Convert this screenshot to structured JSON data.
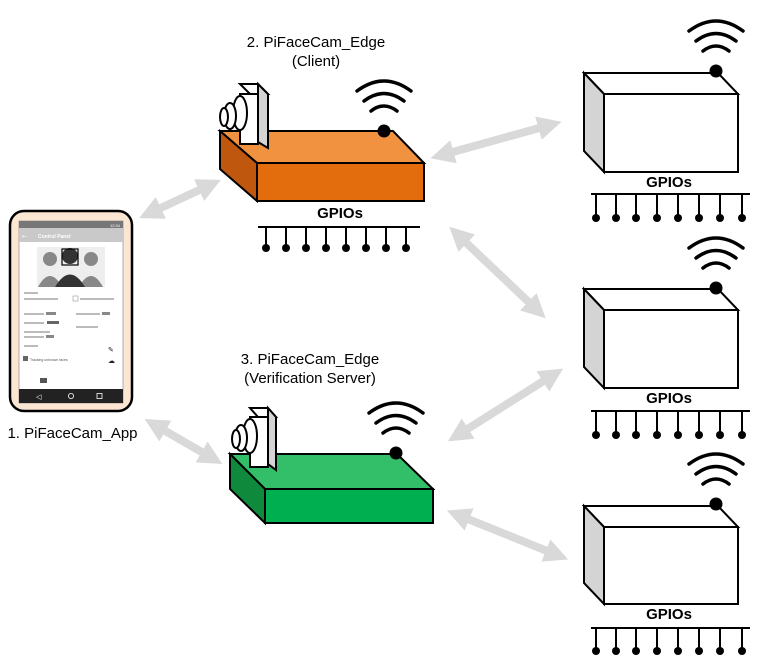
{
  "nodes": {
    "app": {
      "label": "1. PiFaceCam_App"
    },
    "client": {
      "label_line1": "2. PiFaceCam_Edge",
      "label_line2": "(Client)",
      "color": "#e8731c"
    },
    "server": {
      "label_line1": "3. PiFaceCam_Edge",
      "label_line2": "(Verification Server)",
      "color": "#1aa84a"
    },
    "gpio_label": "GPIOs"
  },
  "phone": {
    "status_time": "12:34",
    "screen_title": "Control Panel",
    "checkbox_label": "Tracking unknown faces",
    "nav_icons": [
      "back-icon",
      "home-icon",
      "recent-icon"
    ]
  },
  "colors": {
    "arrow": "#d9d9d9",
    "box_front": "#ffffff",
    "box_side": "#d4d4d4",
    "outline": "#000000"
  }
}
